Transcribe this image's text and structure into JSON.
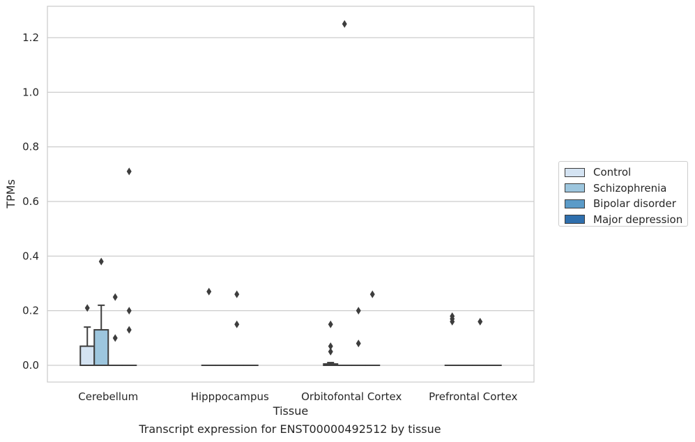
{
  "chart_data": {
    "type": "box",
    "xlabel": "Tissue",
    "ylabel": "TPMs",
    "ylim": [
      -0.06,
      1.31
    ],
    "yticks": [
      0.0,
      0.2,
      0.4,
      0.6,
      0.8,
      1.0,
      1.2
    ],
    "ytick_labels": [
      "0.0",
      "0.2",
      "0.4",
      "0.6",
      "0.8",
      "1.0",
      "1.2"
    ],
    "grid": "horizontal",
    "legend_placement": "right",
    "categories": [
      "Cerebellum",
      "Hipppocampus",
      "Orbitofontal Cortex",
      "Prefrontal Cortex"
    ],
    "series": [
      {
        "name": "Control",
        "color": "#d4e3f2",
        "boxes": [
          {
            "q1": 0.0,
            "median": 0.0,
            "q3": 0.07,
            "whisker_low": 0.0,
            "whisker_high": 0.14,
            "outliers": [
              0.21
            ]
          },
          {
            "q1": 0.0,
            "median": 0.0,
            "q3": 0.0,
            "whisker_low": 0.0,
            "whisker_high": 0.0,
            "outliers": [
              0.27
            ]
          },
          {
            "q1": 0.0,
            "median": 0.0,
            "q3": 0.005,
            "whisker_low": 0.0,
            "whisker_high": 0.01,
            "outliers": [
              0.15,
              0.07,
              0.05
            ]
          },
          {
            "q1": 0.0,
            "median": 0.0,
            "q3": 0.0,
            "whisker_low": 0.0,
            "whisker_high": 0.0,
            "outliers": [
              0.18,
              0.17,
              0.16
            ]
          }
        ]
      },
      {
        "name": "Schizophrenia",
        "color": "#9dc6de",
        "boxes": [
          {
            "q1": 0.0,
            "median": 0.0,
            "q3": 0.13,
            "whisker_low": 0.0,
            "whisker_high": 0.22,
            "outliers": [
              0.38
            ]
          },
          {
            "q1": 0.0,
            "median": 0.0,
            "q3": 0.0,
            "whisker_low": 0.0,
            "whisker_high": 0.0,
            "outliers": []
          },
          {
            "q1": 0.0,
            "median": 0.0,
            "q3": 0.0,
            "whisker_low": 0.0,
            "whisker_high": 0.0,
            "outliers": [
              1.25
            ]
          },
          {
            "q1": 0.0,
            "median": 0.0,
            "q3": 0.0,
            "whisker_low": 0.0,
            "whisker_high": 0.0,
            "outliers": []
          }
        ]
      },
      {
        "name": "Bipolar disorder",
        "color": "#5b9bc8",
        "boxes": [
          {
            "q1": 0.0,
            "median": 0.0,
            "q3": 0.0,
            "whisker_low": 0.0,
            "whisker_high": 0.0,
            "outliers": [
              0.25,
              0.1
            ]
          },
          {
            "q1": 0.0,
            "median": 0.0,
            "q3": 0.0,
            "whisker_low": 0.0,
            "whisker_high": 0.0,
            "outliers": [
              0.26,
              0.15
            ]
          },
          {
            "q1": 0.0,
            "median": 0.0,
            "q3": 0.0,
            "whisker_low": 0.0,
            "whisker_high": 0.0,
            "outliers": [
              0.2,
              0.08
            ]
          },
          {
            "q1": 0.0,
            "median": 0.0,
            "q3": 0.0,
            "whisker_low": 0.0,
            "whisker_high": 0.0,
            "outliers": [
              0.16
            ]
          }
        ]
      },
      {
        "name": "Major depression",
        "color": "#2f6fad",
        "boxes": [
          {
            "q1": 0.0,
            "median": 0.0,
            "q3": 0.0,
            "whisker_low": 0.0,
            "whisker_high": 0.0,
            "outliers": [
              0.71,
              0.2,
              0.13
            ]
          },
          {
            "q1": 0.0,
            "median": 0.0,
            "q3": 0.0,
            "whisker_low": 0.0,
            "whisker_high": 0.0,
            "outliers": []
          },
          {
            "q1": 0.0,
            "median": 0.0,
            "q3": 0.0,
            "whisker_low": 0.0,
            "whisker_high": 0.0,
            "outliers": [
              0.26
            ]
          },
          {
            "q1": 0.0,
            "median": 0.0,
            "q3": 0.0,
            "whisker_low": 0.0,
            "whisker_high": 0.0,
            "outliers": []
          }
        ]
      }
    ],
    "caption": "Transcript expression for ENST00000492512 by tissue"
  }
}
